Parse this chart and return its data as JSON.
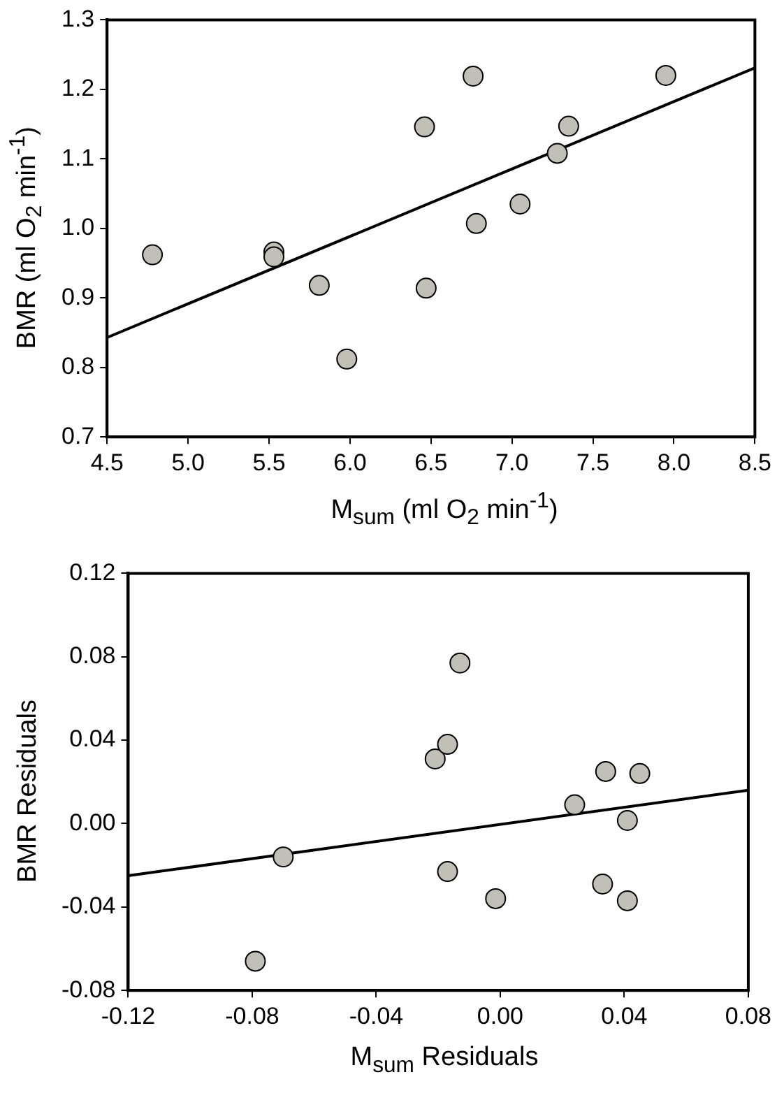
{
  "chart_data": [
    {
      "type": "scatter",
      "xlabel": "M$_{sum}$ (ml O$_{2}$ min$^{-1}$)",
      "ylabel": "BMR (ml O$_{2}$ min$^{-1}$)",
      "xlim": [
        4.5,
        8.5
      ],
      "xticks": [
        {
          "value": 4.5,
          "label": "4.5"
        },
        {
          "value": 5,
          "label": "5.0"
        },
        {
          "value": 5.5,
          "label": "5.5"
        },
        {
          "value": 6,
          "label": "6.0"
        },
        {
          "value": 6.5,
          "label": "6.5"
        },
        {
          "value": 7,
          "label": "7.0"
        },
        {
          "value": 7.5,
          "label": "7.5"
        },
        {
          "value": 8,
          "label": "8.0"
        },
        {
          "value": 8.5,
          "label": "8.5"
        }
      ],
      "ylim": [
        0.7,
        1.3
      ],
      "yticks": [
        {
          "value": 0.7,
          "label": "0.7"
        },
        {
          "value": 0.8,
          "label": "0.8"
        },
        {
          "value": 0.9,
          "label": "0.9"
        },
        {
          "value": 1,
          "label": "1.0"
        },
        {
          "value": 1.1,
          "label": "1.1"
        },
        {
          "value": 1.2,
          "label": "1.2"
        },
        {
          "value": 1.3,
          "label": "1.3"
        }
      ],
      "series": [
        {
          "marker": "circle",
          "color": "#c0c0b8",
          "x": [
            4.78,
            5.53,
            5.53,
            5.81,
            5.98,
            6.46,
            6.47,
            6.76,
            6.78,
            7.05,
            7.28,
            7.35,
            7.95
          ],
          "values": [
            0.962,
            0.966,
            0.959,
            0.918,
            0.812,
            1.146,
            0.914,
            1.219,
            1.007,
            1.035,
            1.108,
            1.147,
            1.22
          ]
        },
        {
          "type": "line",
          "marker": "none",
          "color": "#000000",
          "x": [
            4.5,
            8.5
          ],
          "values": [
            0.843,
            1.231
          ]
        }
      ]
    },
    {
      "type": "scatter",
      "xlabel": "M$_{sum}$ Residuals",
      "ylabel": "BMR Residuals",
      "xlim": [
        -0.12,
        0.08
      ],
      "xticks": [
        {
          "value": -0.12,
          "label": "-0.12"
        },
        {
          "value": -0.08,
          "label": "-0.08"
        },
        {
          "value": -0.04,
          "label": "-0.04"
        },
        {
          "value": 0,
          "label": "0.00"
        },
        {
          "value": 0.04,
          "label": "0.04"
        },
        {
          "value": 0.08,
          "label": "0.08"
        }
      ],
      "ylim": [
        -0.08,
        0.12
      ],
      "yticks": [
        {
          "value": -0.08,
          "label": "-0.08"
        },
        {
          "value": -0.04,
          "label": "-0.04"
        },
        {
          "value": 0,
          "label": "0.00"
        },
        {
          "value": 0.04,
          "label": "0.04"
        },
        {
          "value": 0.08,
          "label": "0.08"
        },
        {
          "value": 0.12,
          "label": "0.12"
        }
      ],
      "series": [
        {
          "marker": "circle",
          "color": "#c0c0b8",
          "x": [
            -0.079,
            -0.07,
            -0.021,
            -0.017,
            -0.013,
            -0.017,
            -0.0015,
            0.024,
            0.034,
            0.045,
            0.041,
            0.033,
            0.041
          ],
          "values": [
            -0.066,
            -0.016,
            0.031,
            0.038,
            0.077,
            -0.023,
            -0.036,
            0.009,
            0.025,
            0.024,
            0.0015,
            -0.029,
            -0.037
          ]
        },
        {
          "type": "line",
          "marker": "none",
          "color": "#000000",
          "x": [
            -0.12,
            0.08
          ],
          "values": [
            -0.025,
            0.016
          ]
        }
      ]
    }
  ]
}
